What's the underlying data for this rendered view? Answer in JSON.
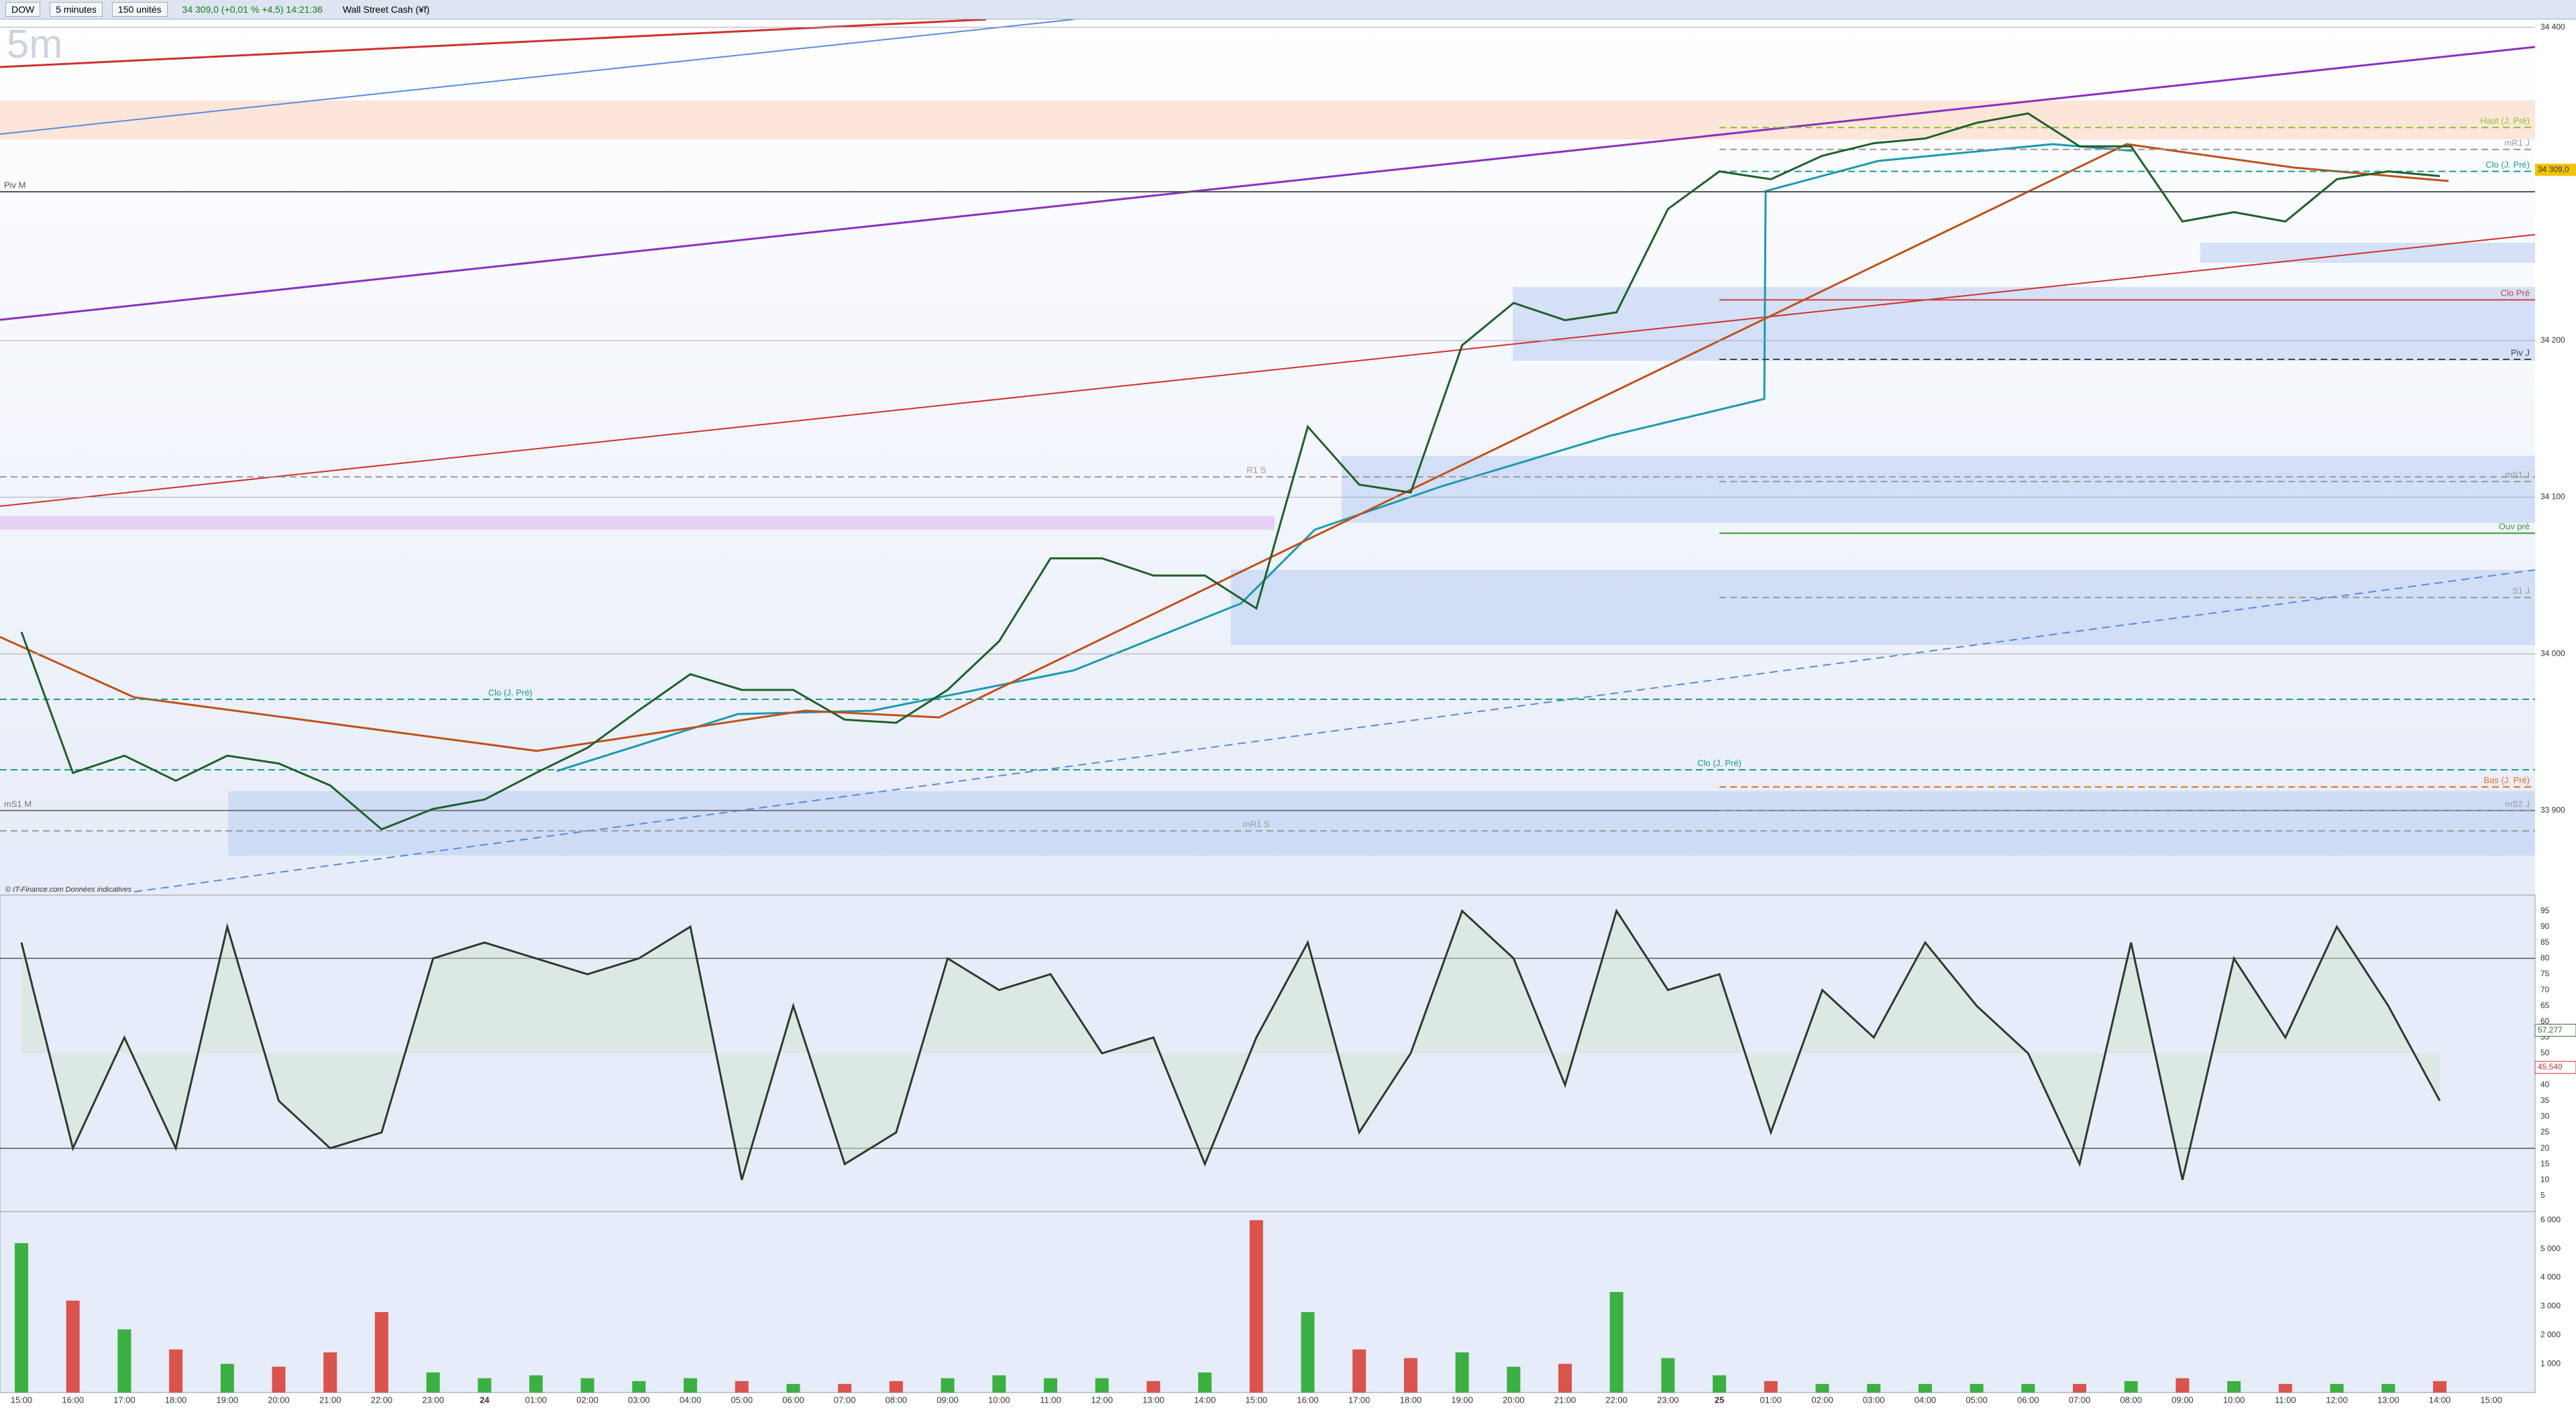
{
  "toolbar": {
    "symbol": "DOW",
    "interval": "5 minutes",
    "units": "150 unités",
    "quote": "34 309,0 (+0,01 % +4,5) 14:21:36",
    "instrument": "Wall Street Cash (¥f)"
  },
  "watermark": "5m",
  "copyright": "© IT-Finance.com Données indicatives",
  "time_axis": {
    "categories": [
      "15:00",
      "16:00",
      "17:00",
      "18:00",
      "19:00",
      "20:00",
      "21:00",
      "22:00",
      "23:00",
      "24",
      "01:00",
      "02:00",
      "03:00",
      "04:00",
      "05:00",
      "06:00",
      "07:00",
      "08:00",
      "09:00",
      "10:00",
      "11:00",
      "12:00",
      "13:00",
      "14:00",
      "15:00",
      "16:00",
      "17:00",
      "18:00",
      "19:00",
      "20:00",
      "21:00",
      "22:00",
      "23:00",
      "25",
      "01:00",
      "02:00",
      "03:00",
      "04:00",
      "05:00",
      "06:00",
      "07:00",
      "08:00",
      "09:00",
      "10:00",
      "11:00",
      "12:00",
      "13:00",
      "14:00",
      "15:00"
    ],
    "bold": [
      "24",
      "25"
    ]
  },
  "chart_data": [
    {
      "type": "line",
      "name": "price",
      "color": "#1f5f2a",
      "values": [
        34014,
        33924,
        33935,
        33919,
        33935,
        33930,
        33916,
        33888,
        33901,
        33907,
        33924,
        33940,
        33964,
        33987,
        33977,
        33977,
        33958,
        33956,
        33977,
        34008,
        34061,
        34061,
        34050,
        34050,
        34029,
        34145,
        34108,
        34103,
        34197,
        34224,
        34213,
        34218,
        34284,
        34308,
        34303,
        34318,
        34326,
        34329,
        34339,
        34345,
        34324,
        34324,
        34276,
        34282,
        34276,
        34303,
        34308,
        34305,
        null
      ],
      "ylim": [
        33846,
        34405
      ],
      "yticks": [
        {
          "value": 34400,
          "label": "34 400"
        },
        {
          "value": 34200,
          "label": "34 200"
        },
        {
          "value": 34100,
          "label": "34 100"
        },
        {
          "value": 34000,
          "label": "34 000"
        },
        {
          "value": 33900,
          "label": "33 900"
        }
      ],
      "price_tag": {
        "value": 34309,
        "label": "34 309,0"
      },
      "levels": [
        {
          "label": "Piv M",
          "value": 34295,
          "color": "#555555",
          "dash": false,
          "span": "full",
          "label_at": "left"
        },
        {
          "label": "R1 S",
          "value": 34113,
          "color": "#999999",
          "dash": true,
          "span": "full",
          "label_at": "center"
        },
        {
          "label": "mS1 M",
          "value": 33900,
          "color": "#777777",
          "dash": false,
          "span": "full",
          "label_at": "left"
        },
        {
          "label": "Clo (J. Pré)",
          "value": 33971,
          "color": "#1a9a8a",
          "dash": true,
          "span": "full",
          "label_at": "third"
        },
        {
          "label": "Clo (J. Pré)",
          "value": 33926,
          "color": "#1a9a8a",
          "dash": true,
          "span": "full",
          "label_at": "center2"
        },
        {
          "label": "mR1 S",
          "value": 33887,
          "color": "#999999",
          "dash": true,
          "span": "full",
          "label_at": "center"
        },
        {
          "label": "Haut (J. Pré)",
          "value": 34336,
          "color": "#8fbf2a",
          "dash": true,
          "span": "day",
          "label_at": "right"
        },
        {
          "label": "mR1 J",
          "value": 34322,
          "color": "#999999",
          "dash": true,
          "span": "day",
          "label_at": "right"
        },
        {
          "label": "Clo (J. Pré)",
          "value": 34308,
          "color": "#1a9a8a",
          "dash": true,
          "span": "day",
          "label_at": "right"
        },
        {
          "label": "Clo Pré",
          "value": 34226,
          "color": "#d04040",
          "dash": false,
          "span": "day",
          "label_at": "right"
        },
        {
          "label": "Piv J",
          "value": 34188,
          "color": "#444444",
          "dash": true,
          "span": "day",
          "label_at": "right"
        },
        {
          "label": "mS1 J",
          "value": 34110,
          "color": "#999999",
          "dash": true,
          "span": "day",
          "label_at": "right"
        },
        {
          "label": "Ouv pré",
          "value": 34077,
          "color": "#3a9a3a",
          "dash": false,
          "span": "day",
          "label_at": "right"
        },
        {
          "label": "S1 J",
          "value": 34036,
          "color": "#999999",
          "dash": true,
          "span": "day",
          "label_at": "right"
        },
        {
          "label": "Bas (J. Pré)",
          "value": 33915,
          "color": "#e07020",
          "dash": true,
          "span": "day",
          "label_at": "right"
        },
        {
          "label": "mS2 J",
          "value": 33900,
          "color": "#999999",
          "dash": true,
          "span": "day",
          "label_at": "right"
        }
      ]
    },
    {
      "type": "line",
      "name": "stochastic",
      "color": "#2d3a2d",
      "values": [
        85,
        20,
        55,
        20,
        90,
        35,
        20,
        25,
        80,
        85,
        80,
        75,
        80,
        90,
        10,
        65,
        15,
        25,
        80,
        70,
        75,
        50,
        55,
        15,
        55,
        85,
        25,
        50,
        95,
        80,
        40,
        95,
        70,
        75,
        25,
        70,
        55,
        85,
        65,
        50,
        15,
        85,
        10,
        80,
        55,
        90,
        65,
        35,
        null
      ],
      "ylim": [
        0,
        100
      ],
      "yticks": [
        95,
        90,
        85,
        80,
        75,
        70,
        65,
        60,
        55,
        50,
        45,
        40,
        35,
        30,
        25,
        20,
        15,
        10,
        5
      ],
      "levels": [
        80,
        20
      ],
      "tags": [
        {
          "value": 57.277,
          "label": "57,277",
          "color": "#2d6a2d"
        },
        {
          "value": 45.54,
          "label": "45,540",
          "color": "#c03030"
        }
      ]
    },
    {
      "type": "bar",
      "name": "volume",
      "up_color": "#3cb043",
      "down_color": "#d9534f",
      "values": [
        5200,
        3200,
        2200,
        1500,
        1000,
        900,
        1400,
        2800,
        700,
        500,
        600,
        500,
        400,
        500,
        400,
        300,
        300,
        400,
        500,
        600,
        500,
        500,
        400,
        700,
        6000,
        2800,
        1500,
        1200,
        1400,
        900,
        1000,
        3500,
        1200,
        600,
        400,
        300,
        300,
        300,
        300,
        300,
        300,
        400,
        500,
        400,
        300,
        300,
        300,
        400,
        null
      ],
      "ylim": [
        0,
        6300
      ],
      "yticks": [
        {
          "value": 6000,
          "label": "6 000"
        },
        {
          "value": 5000,
          "label": "5 000"
        },
        {
          "value": 4000,
          "label": "4 000"
        },
        {
          "value": 3000,
          "label": "3 000"
        },
        {
          "value": 2000,
          "label": "2 000"
        },
        {
          "value": 1000,
          "label": "1 000"
        }
      ]
    }
  ]
}
